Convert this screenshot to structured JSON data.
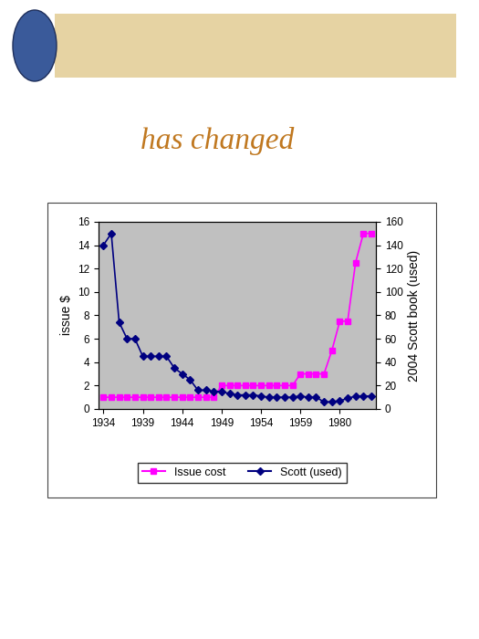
{
  "chart_data": {
    "type": "line",
    "title": "has changed",
    "y_label": "issue $",
    "y2_label": "2004 Scott book (used)",
    "categories": [
      "1934",
      null,
      null,
      null,
      null,
      "1939",
      null,
      null,
      null,
      null,
      "1944",
      null,
      null,
      null,
      null,
      "1949",
      null,
      null,
      null,
      null,
      "1954",
      null,
      null,
      null,
      null,
      "1959",
      null,
      null,
      null,
      null,
      "1980",
      null,
      null,
      null,
      null
    ],
    "series": [
      {
        "name": "Issue cost",
        "color": "#ff00ff",
        "marker": "square",
        "line_style": "solid",
        "values": [
          1,
          1,
          1,
          1,
          1,
          1,
          1,
          1,
          1,
          1,
          1,
          1,
          1,
          1,
          1,
          2,
          2,
          2,
          2,
          2,
          2,
          2,
          2,
          2,
          2,
          3,
          3,
          3,
          3,
          5,
          7.5,
          7.5,
          12.5,
          15,
          15
        ]
      },
      {
        "name": "Scott (used)",
        "color": "#000080",
        "marker": "diamond",
        "line_style": "solid",
        "axis": "y2",
        "values": [
          140,
          150,
          74,
          60,
          60,
          45,
          45,
          45,
          45,
          35,
          30,
          25,
          16,
          16,
          15,
          15,
          13,
          12,
          12,
          12,
          11,
          10,
          10,
          10,
          10,
          11,
          10,
          10,
          6,
          6,
          7,
          9,
          11,
          11,
          11
        ]
      }
    ],
    "ylim": [
      0,
      16
    ],
    "yticks": [
      0,
      2,
      4,
      6,
      8,
      10,
      12,
      14,
      16
    ],
    "y2lim": [
      0,
      160
    ],
    "y2ticks": [
      0,
      20,
      40,
      60,
      80,
      100,
      120,
      140,
      160
    ],
    "grid": false,
    "legend": "lower center"
  }
}
